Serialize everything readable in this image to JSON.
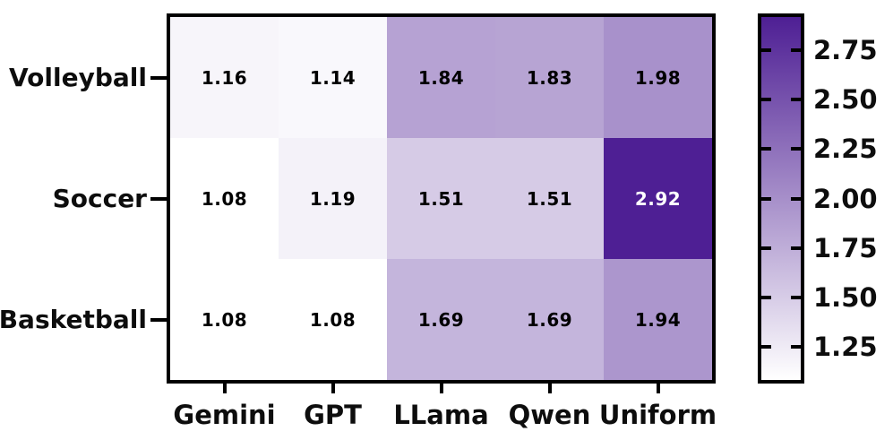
{
  "chart_data": {
    "type": "heatmap",
    "title": "",
    "rows": [
      "Volleyball",
      "Soccer",
      "Basketball"
    ],
    "columns": [
      "Gemini",
      "GPT",
      "LLama",
      "Qwen",
      "Uniform"
    ],
    "values": [
      [
        1.16,
        1.14,
        1.84,
        1.83,
        1.98
      ],
      [
        1.08,
        1.19,
        1.51,
        1.51,
        2.92
      ],
      [
        1.08,
        1.08,
        1.69,
        1.69,
        1.94
      ]
    ],
    "cell_labels": [
      [
        "1.16",
        "1.14",
        "1.84",
        "1.83",
        "1.98"
      ],
      [
        "1.08",
        "1.19",
        "1.51",
        "1.51",
        "2.92"
      ],
      [
        "1.08",
        "1.08",
        "1.69",
        "1.69",
        "1.94"
      ]
    ],
    "vmin": 1.08,
    "vmax": 2.92,
    "colormap": {
      "name": "white-to-purple",
      "start_color": "#ffffff",
      "end_color": "#4e1f94"
    },
    "cell_text_color_light_bg": "#000000",
    "cell_text_color_dark_bg": "#ffffff",
    "axis_color": "#000000",
    "grid": false,
    "colorbar": {
      "position": "right",
      "tick_labels": [
        "2.75",
        "2.50",
        "2.25",
        "2.00",
        "1.75",
        "1.50",
        "1.25"
      ],
      "ticks": [
        2.75,
        2.5,
        2.25,
        2.0,
        1.75,
        1.5,
        1.25
      ]
    }
  }
}
